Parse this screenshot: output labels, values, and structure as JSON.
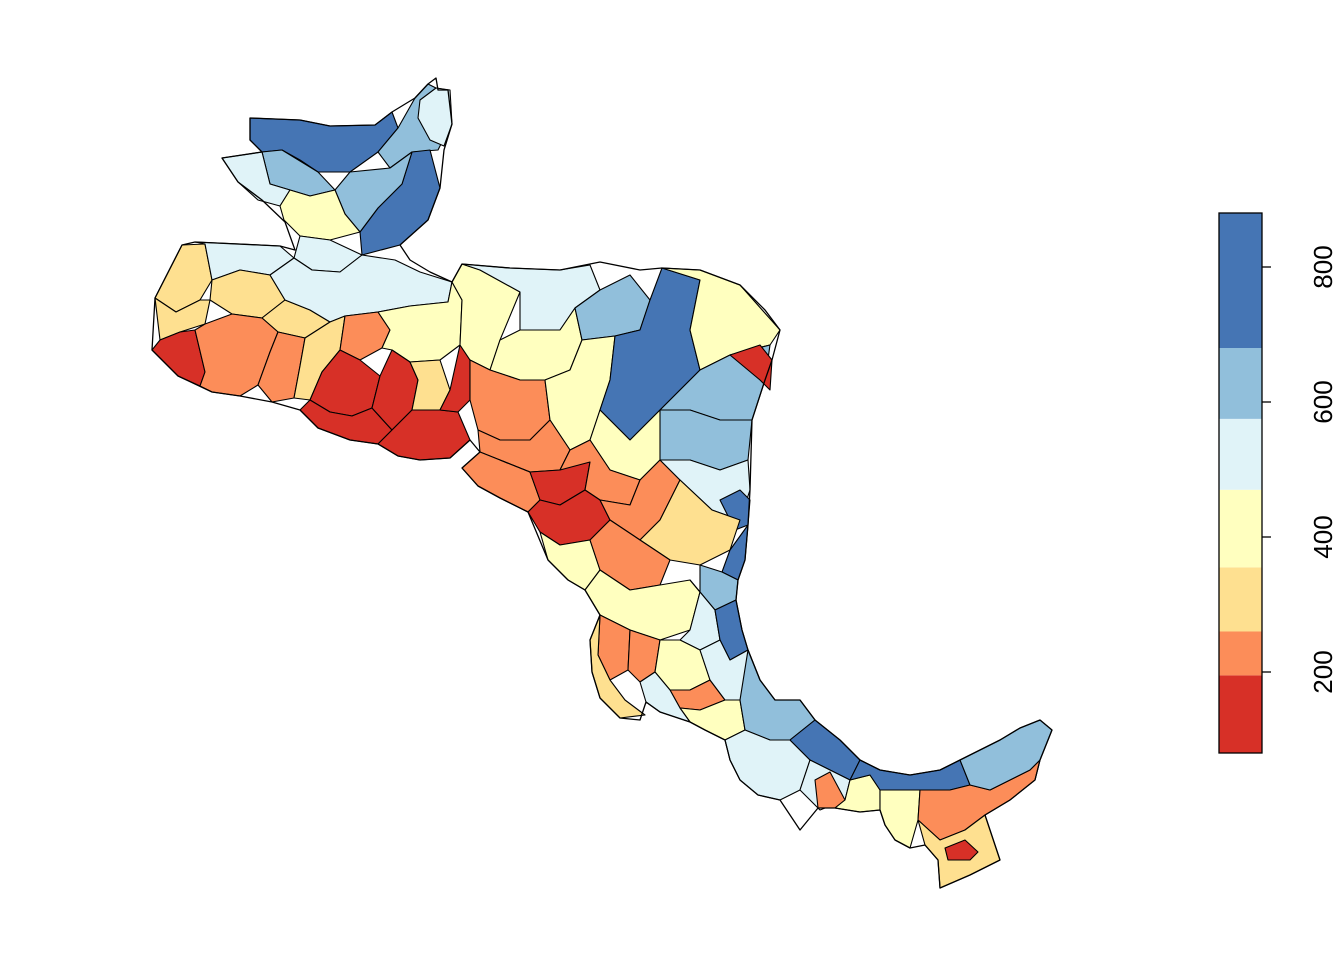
{
  "map": {
    "type": "choropleth",
    "region": "Central America"
  },
  "legend": {
    "placement": "right",
    "orientation": "vertical",
    "range": [
      80,
      880
    ],
    "bins": [
      {
        "from": 80,
        "to": 195,
        "color": "#D73027"
      },
      {
        "from": 195,
        "to": 260,
        "color": "#FC8D59"
      },
      {
        "from": 260,
        "to": 355,
        "color": "#FEE090"
      },
      {
        "from": 355,
        "to": 470,
        "color": "#FFFFBF"
      },
      {
        "from": 470,
        "to": 575,
        "color": "#E0F3F8"
      },
      {
        "from": 575,
        "to": 680,
        "color": "#91BFDB"
      },
      {
        "from": 680,
        "to": 880,
        "color": "#4575B4"
      }
    ],
    "ticks": [
      {
        "value": 200,
        "label": "200"
      },
      {
        "value": 400,
        "label": "400"
      },
      {
        "value": 600,
        "label": "600"
      },
      {
        "value": 800,
        "label": "800"
      }
    ]
  },
  "palette": {
    "red": "#D73027",
    "orange": "#FC8D59",
    "light_orange": "#FEE090",
    "light_yellow": "#FFFFBF",
    "light_blue": "#E0F3F8",
    "mid_blue": "#91BFDB",
    "dark_blue": "#4575B4",
    "border": "#000000"
  }
}
